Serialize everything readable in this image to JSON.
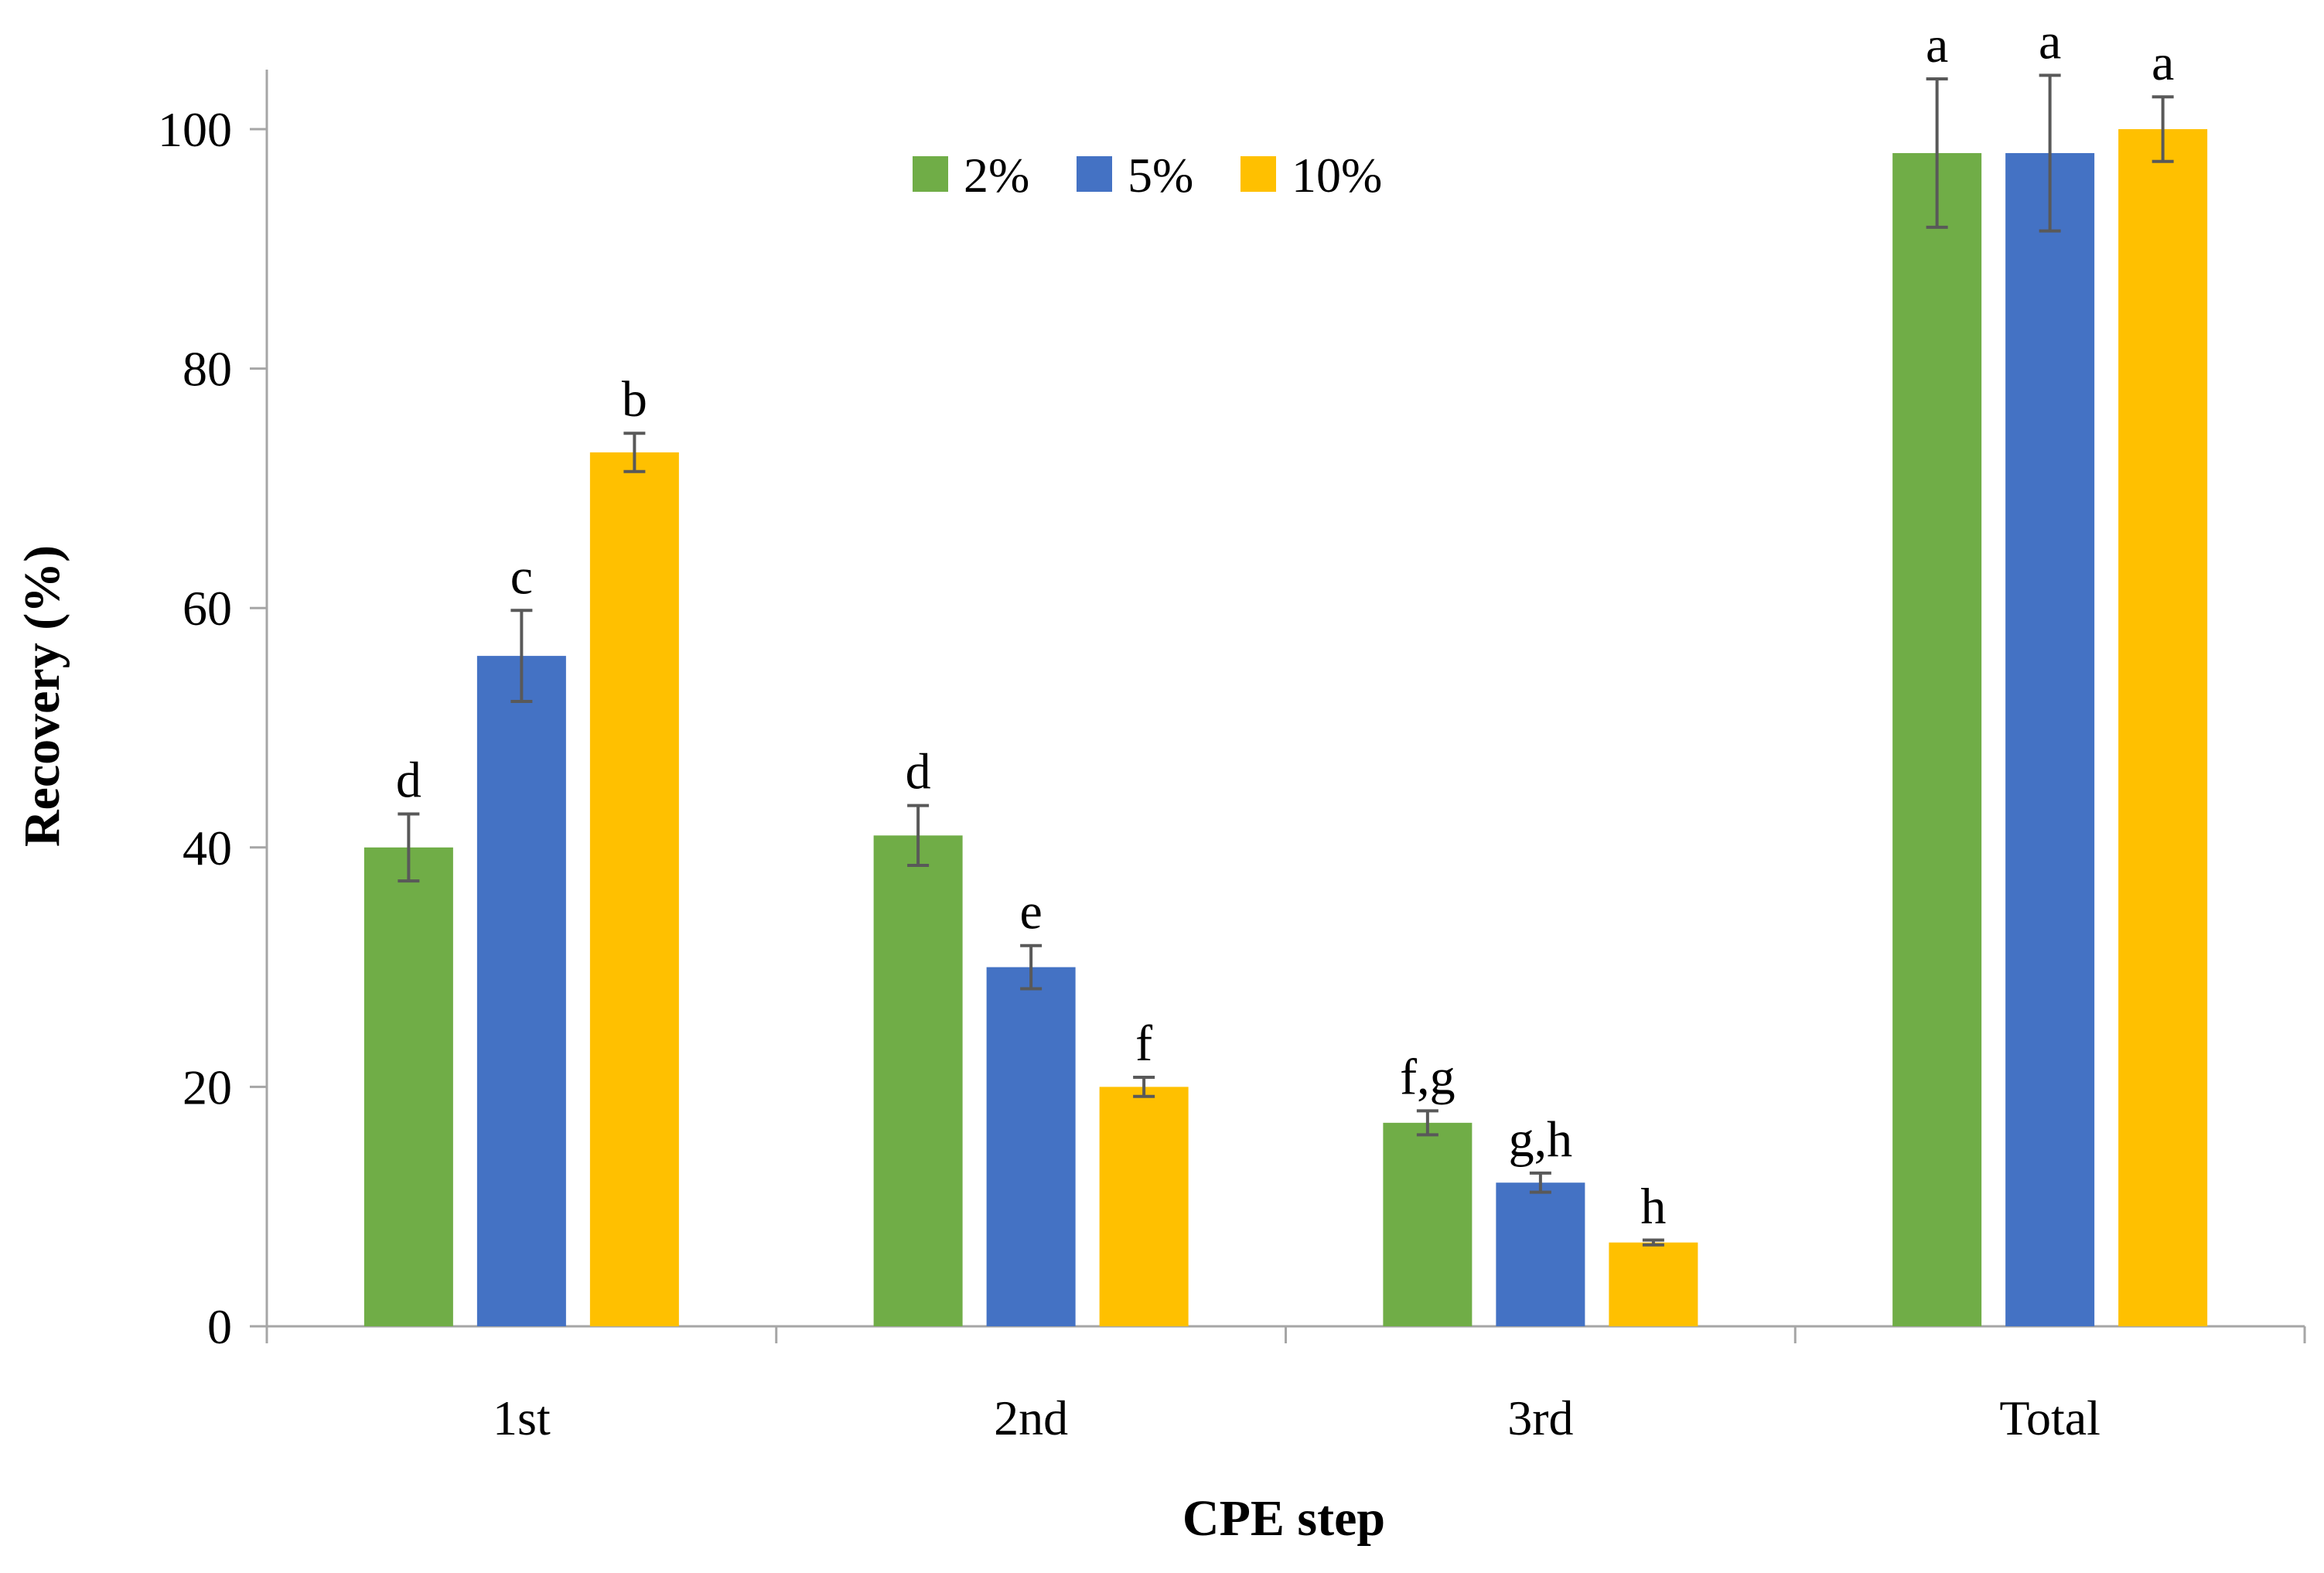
{
  "chart_data": {
    "type": "bar",
    "title": "",
    "xlabel": "CPE step",
    "ylabel": "Recovery (%)",
    "ylim": [
      0,
      100
    ],
    "yticks": [
      0,
      20,
      40,
      60,
      80,
      100
    ],
    "categories": [
      "1st",
      "2nd",
      "3rd",
      "Total"
    ],
    "legend_position": "top-center",
    "series": [
      {
        "name": "2%",
        "color": "#70AD47",
        "values": [
          40,
          41,
          17,
          98
        ],
        "errors": [
          2.8,
          2.5,
          1.0,
          6.2
        ],
        "labels": [
          "d",
          "d",
          "f,g",
          "a"
        ]
      },
      {
        "name": "5%",
        "color": "#4472C4",
        "values": [
          56,
          30,
          12,
          98
        ],
        "errors": [
          3.8,
          1.8,
          0.8,
          6.5
        ],
        "labels": [
          "c",
          "e",
          "g,h",
          "a"
        ]
      },
      {
        "name": "10%",
        "color": "#FFC000",
        "values": [
          73,
          20,
          7,
          100
        ],
        "errors": [
          1.6,
          0.8,
          0.2,
          2.7
        ],
        "labels": [
          "b",
          "f",
          "h",
          "a"
        ]
      }
    ]
  }
}
